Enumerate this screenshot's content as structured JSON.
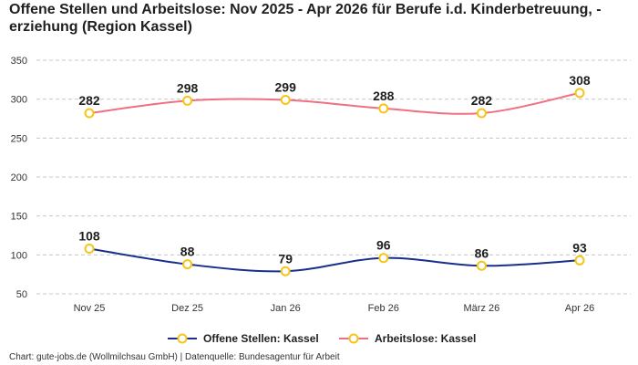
{
  "chart_data": {
    "type": "line",
    "title": "Offene Stellen und Arbeitslose: Nov 2025 - Apr 2026 für Berufe i.d. Kinderbetreuung, -erziehung (Region Kassel)",
    "categories": [
      "Nov 25",
      "Dez 25",
      "Jan 26",
      "Feb 26",
      "März 26",
      "Apr 26"
    ],
    "series": [
      {
        "name": "Offene Stellen: Kassel",
        "values": [
          108,
          88,
          79,
          96,
          86,
          93
        ],
        "color": "#1a2f8c"
      },
      {
        "name": "Arbeitslose: Kassel",
        "values": [
          282,
          298,
          299,
          288,
          282,
          308
        ],
        "color": "#f06f80"
      }
    ],
    "yticks": [
      50,
      100,
      150,
      200,
      250,
      300,
      350
    ],
    "ylim": [
      50,
      350
    ],
    "grid": true,
    "legend_position": "bottom",
    "marker_color": "#f5c518",
    "source": "Chart: gute-jobs.de (Wollmilchsau GmbH) | Datenquelle: Bundesagentur für Arbeit"
  }
}
